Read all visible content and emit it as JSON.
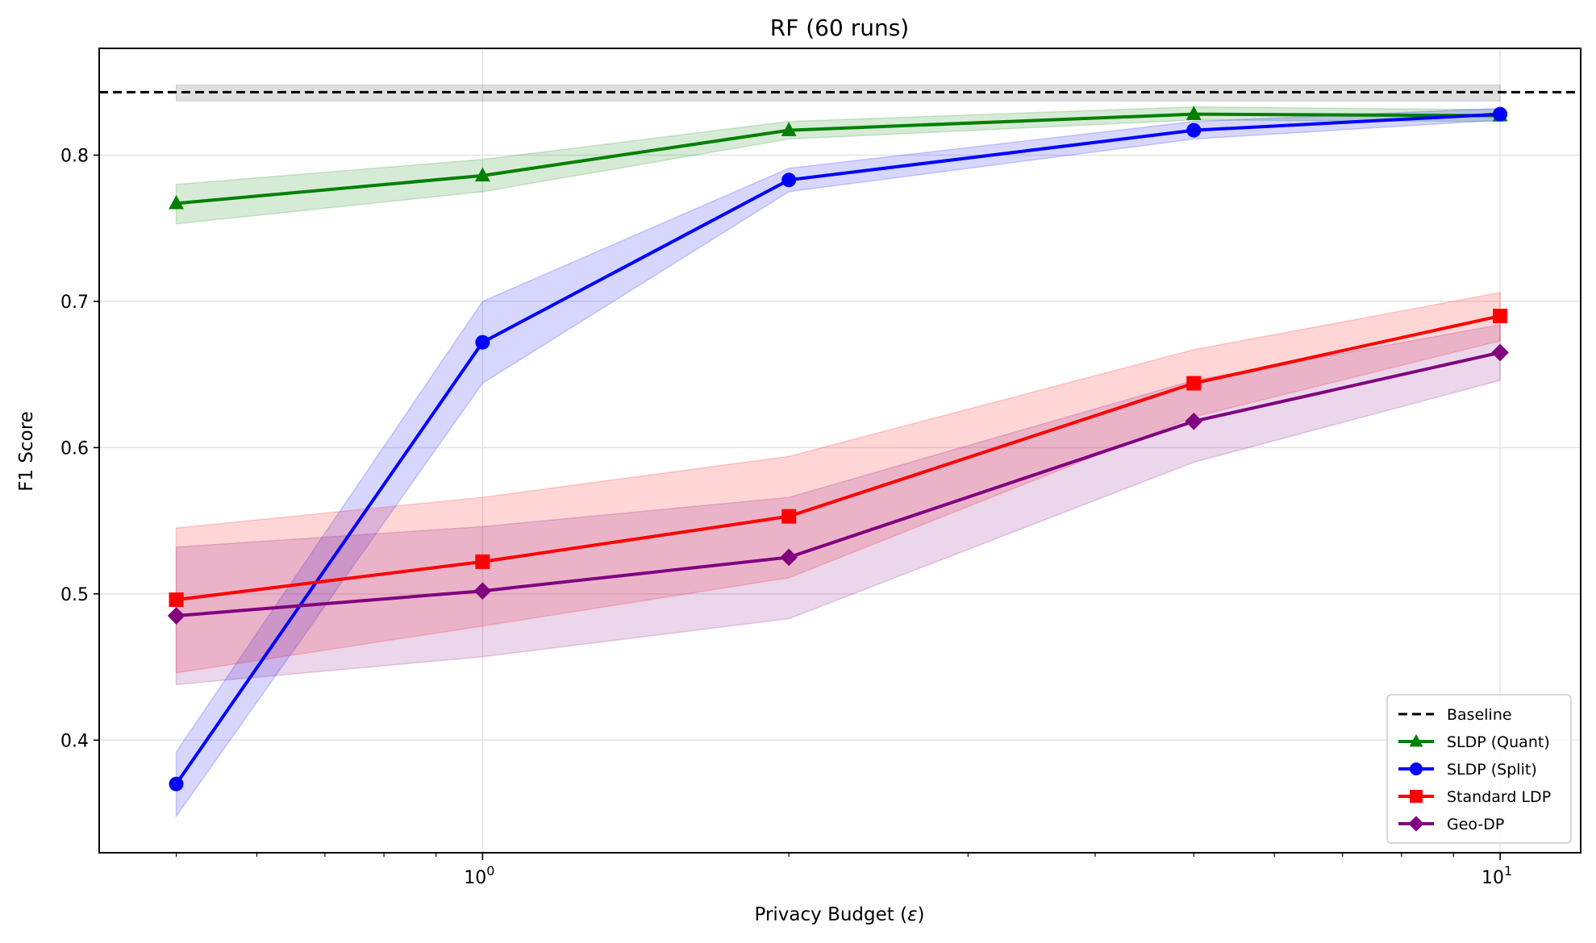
{
  "chart_data": {
    "type": "line",
    "title": "RF (60 runs)",
    "xlabel": "Privacy Budget (ε)",
    "xlabel_text": "Privacy Budget (",
    "xlabel_symbol": "ε",
    "xlabel_close": ")",
    "ylabel": "F1 Score",
    "xscale": "log",
    "x": [
      0.5,
      1,
      2,
      5,
      10
    ],
    "xlim": [
      0.42,
      12.0
    ],
    "ylim": [
      0.323,
      0.873
    ],
    "xticks": [
      {
        "value": 1,
        "base": "10",
        "exp": "0"
      },
      {
        "value": 10,
        "base": "10",
        "exp": "1"
      }
    ],
    "yticks": [
      0.4,
      0.5,
      0.6,
      0.7,
      0.8
    ],
    "ytick_labels": [
      "0.4",
      "0.5",
      "0.6",
      "0.7",
      "0.8"
    ],
    "grid": true,
    "legend_position": "lower-right",
    "baseline": {
      "name": "Baseline",
      "value": 0.843,
      "band": [
        0.837,
        0.848
      ],
      "color": "#000000",
      "style": "dashed"
    },
    "series": [
      {
        "name": "SLDP (Quant)",
        "color": "#008000",
        "marker": "triangle",
        "values": [
          0.767,
          0.786,
          0.817,
          0.828,
          0.827
        ],
        "lower": [
          0.753,
          0.775,
          0.811,
          0.824,
          0.823
        ],
        "upper": [
          0.78,
          0.797,
          0.823,
          0.833,
          0.831
        ]
      },
      {
        "name": "SLDP (Split)",
        "color": "#0000ff",
        "marker": "circle",
        "values": [
          0.37,
          0.672,
          0.783,
          0.817,
          0.828
        ],
        "lower": [
          0.348,
          0.644,
          0.775,
          0.811,
          0.824
        ],
        "upper": [
          0.392,
          0.7,
          0.791,
          0.823,
          0.832
        ]
      },
      {
        "name": "Standard LDP",
        "color": "#ff0000",
        "marker": "square",
        "values": [
          0.496,
          0.522,
          0.553,
          0.644,
          0.69
        ],
        "lower": [
          0.446,
          0.478,
          0.511,
          0.621,
          0.673
        ],
        "upper": [
          0.545,
          0.566,
          0.594,
          0.667,
          0.706
        ]
      },
      {
        "name": "Geo-DP",
        "color": "#800080",
        "marker": "diamond",
        "values": [
          0.485,
          0.502,
          0.525,
          0.618,
          0.665
        ],
        "lower": [
          0.438,
          0.457,
          0.483,
          0.59,
          0.646
        ],
        "upper": [
          0.532,
          0.546,
          0.566,
          0.646,
          0.684
        ]
      }
    ]
  }
}
